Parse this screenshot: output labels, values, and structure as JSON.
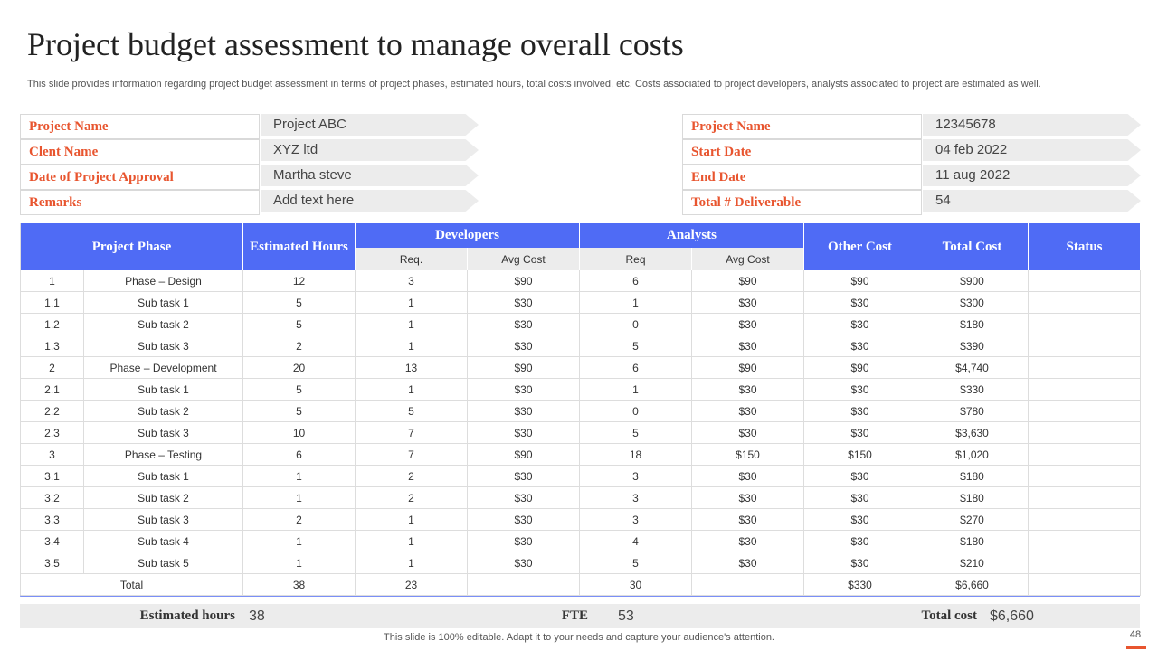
{
  "title": "Project budget assessment to manage overall costs",
  "subtitle": "This slide provides information regarding project budget assessment in terms of project phases, estimated hours, total costs involved, etc. Costs associated to project developers, analysts associated to project are estimated as well.",
  "info_left": [
    {
      "label": "Project Name",
      "value": "Project ABC"
    },
    {
      "label": "Clent Name",
      "value": "XYZ ltd"
    },
    {
      "label": "Date of Project Approval",
      "value": "Martha steve"
    },
    {
      "label": "Remarks",
      "value": "Add text here"
    }
  ],
  "info_right": [
    {
      "label": "Project Name",
      "value": "12345678"
    },
    {
      "label": "Start Date",
      "value": "04 feb 2022"
    },
    {
      "label": "End Date",
      "value": "11 aug 2022"
    },
    {
      "label": "Total # Deliverable",
      "value": "54"
    }
  ],
  "table": {
    "header": {
      "phase": "Project Phase",
      "hours": "Estimated Hours",
      "developers": "Developers",
      "analysts": "Analysts",
      "other": "Other Cost",
      "total": "Total Cost",
      "status": "Status",
      "dev_req": "Req.",
      "dev_avg": "Avg Cost",
      "an_req": "Req",
      "an_avg": "Avg Cost"
    },
    "rows": [
      [
        "1",
        "Phase – Design",
        "12",
        "3",
        "$90",
        "6",
        "$90",
        "$90",
        "$900"
      ],
      [
        "1.1",
        "Sub task 1",
        "5",
        "1",
        "$30",
        "1",
        "$30",
        "$30",
        "$300"
      ],
      [
        "1.2",
        "Sub task 2",
        "5",
        "1",
        "$30",
        "0",
        "$30",
        "$30",
        "$180"
      ],
      [
        "1.3",
        "Sub task 3",
        "2",
        "1",
        "$30",
        "5",
        "$30",
        "$30",
        "$390"
      ],
      [
        "2",
        "Phase – Development",
        "20",
        "13",
        "$90",
        "6",
        "$90",
        "$90",
        "$4,740"
      ],
      [
        "2.1",
        "Sub task 1",
        "5",
        "1",
        "$30",
        "1",
        "$30",
        "$30",
        "$330"
      ],
      [
        "2.2",
        "Sub task 2",
        "5",
        "5",
        "$30",
        "0",
        "$30",
        "$30",
        "$780"
      ],
      [
        "2.3",
        "Sub task 3",
        "10",
        "7",
        "$30",
        "5",
        "$30",
        "$30",
        "$3,630"
      ],
      [
        "3",
        "Phase – Testing",
        "6",
        "7",
        "$90",
        "18",
        "$150",
        "$150",
        "$1,020"
      ],
      [
        "3.1",
        "Sub task 1",
        "1",
        "2",
        "$30",
        "3",
        "$30",
        "$30",
        "$180"
      ],
      [
        "3.2",
        "Sub task 2",
        "1",
        "2",
        "$30",
        "3",
        "$30",
        "$30",
        "$180"
      ],
      [
        "3.3",
        "Sub task 3",
        "2",
        "1",
        "$30",
        "3",
        "$30",
        "$30",
        "$270"
      ],
      [
        "3.4",
        "Sub task 4",
        "1",
        "1",
        "$30",
        "4",
        "$30",
        "$30",
        "$180"
      ],
      [
        "3.5",
        "Sub task 5",
        "1",
        "1",
        "$30",
        "5",
        "$30",
        "$30",
        "$210"
      ]
    ],
    "total_row": {
      "label": "Total",
      "hours": "38",
      "dev_req": "23",
      "an_req": "30",
      "other": "$330",
      "total": "$6,660"
    }
  },
  "summary": [
    {
      "label": "Estimated hours",
      "value": "38"
    },
    {
      "label": "FTE",
      "value": "53"
    },
    {
      "label": "Total cost",
      "value": "$6,660"
    }
  ],
  "footer": "This slide is 100% editable. Adapt it to your needs and capture your audience's attention.",
  "page_number": "48"
}
